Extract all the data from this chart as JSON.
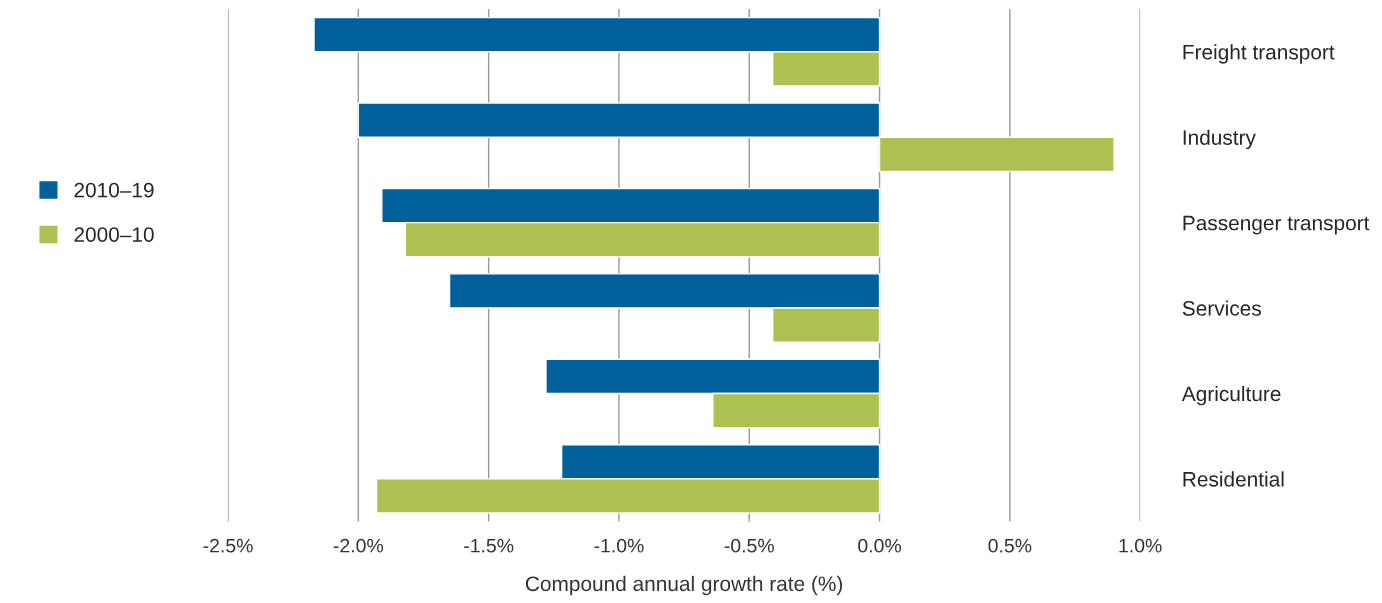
{
  "chart_data": {
    "type": "bar",
    "orientation": "horizontal",
    "xlabel": "Compound annual growth rate (%)",
    "categories": [
      "Freight transport",
      "Industry",
      "Passenger transport",
      "Services",
      "Agriculture",
      "Residential"
    ],
    "series": [
      {
        "name": "2010–19",
        "color": "#00609c",
        "values": [
          -2.17,
          -2.0,
          -1.91,
          -1.65,
          -1.28,
          -1.22
        ]
      },
      {
        "name": "2000–10",
        "color": "#adc152",
        "values": [
          -0.41,
          0.9,
          -1.82,
          -0.41,
          -0.64,
          -1.93
        ]
      }
    ],
    "xlim": [
      -2.5,
      1.0
    ],
    "xticks": [
      {
        "value": -2.5,
        "label": "-2.5%"
      },
      {
        "value": -2.0,
        "label": "-2.0%"
      },
      {
        "value": -1.5,
        "label": "-1.5%"
      },
      {
        "value": -1.0,
        "label": "-1.0%"
      },
      {
        "value": -0.5,
        "label": "-0.5%"
      },
      {
        "value": 0.0,
        "label": "0.0%"
      },
      {
        "value": 0.5,
        "label": "0.5%"
      },
      {
        "value": 1.0,
        "label": "1.0%"
      }
    ],
    "grid": "x",
    "legend": "left"
  }
}
